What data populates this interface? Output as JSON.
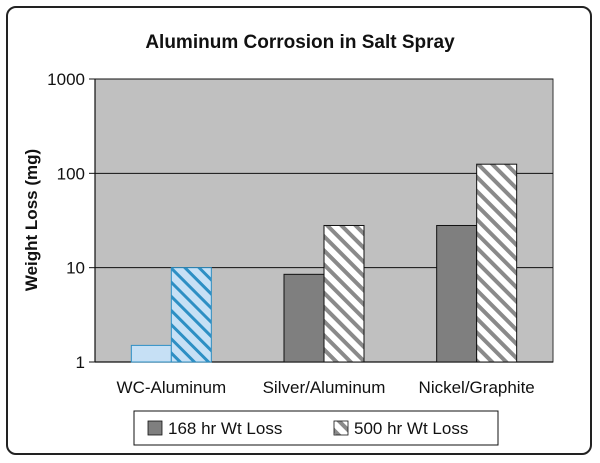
{
  "chart_data": {
    "type": "bar",
    "title": "Aluminum Corrosion in Salt Spray",
    "xlabel": "",
    "ylabel": "Weight Loss (mg)",
    "yscale": "log",
    "ylim": [
      1,
      1000
    ],
    "yticks": [
      "1",
      "10",
      "100",
      "1000"
    ],
    "grid": "horizontal major",
    "legend_position": "bottom",
    "categories": [
      "WC-Aluminum",
      "Silver/Aluminum",
      "Nickel/Graphite"
    ],
    "series": [
      {
        "name": "168 hr Wt Loss",
        "values": [
          1.5,
          8.5,
          28
        ]
      },
      {
        "name": "500 hr Wt Loss",
        "values": [
          10,
          28,
          125
        ]
      }
    ],
    "colors": {
      "plot_background": "#c0c0c0",
      "solid_bar": "#7f7f7f",
      "hatched_bar_stripe": "#888888",
      "highlight_solid": "#c6e0f5",
      "highlight_stripe": "#2d8fc4",
      "highlight_category": "WC-Aluminum"
    }
  }
}
